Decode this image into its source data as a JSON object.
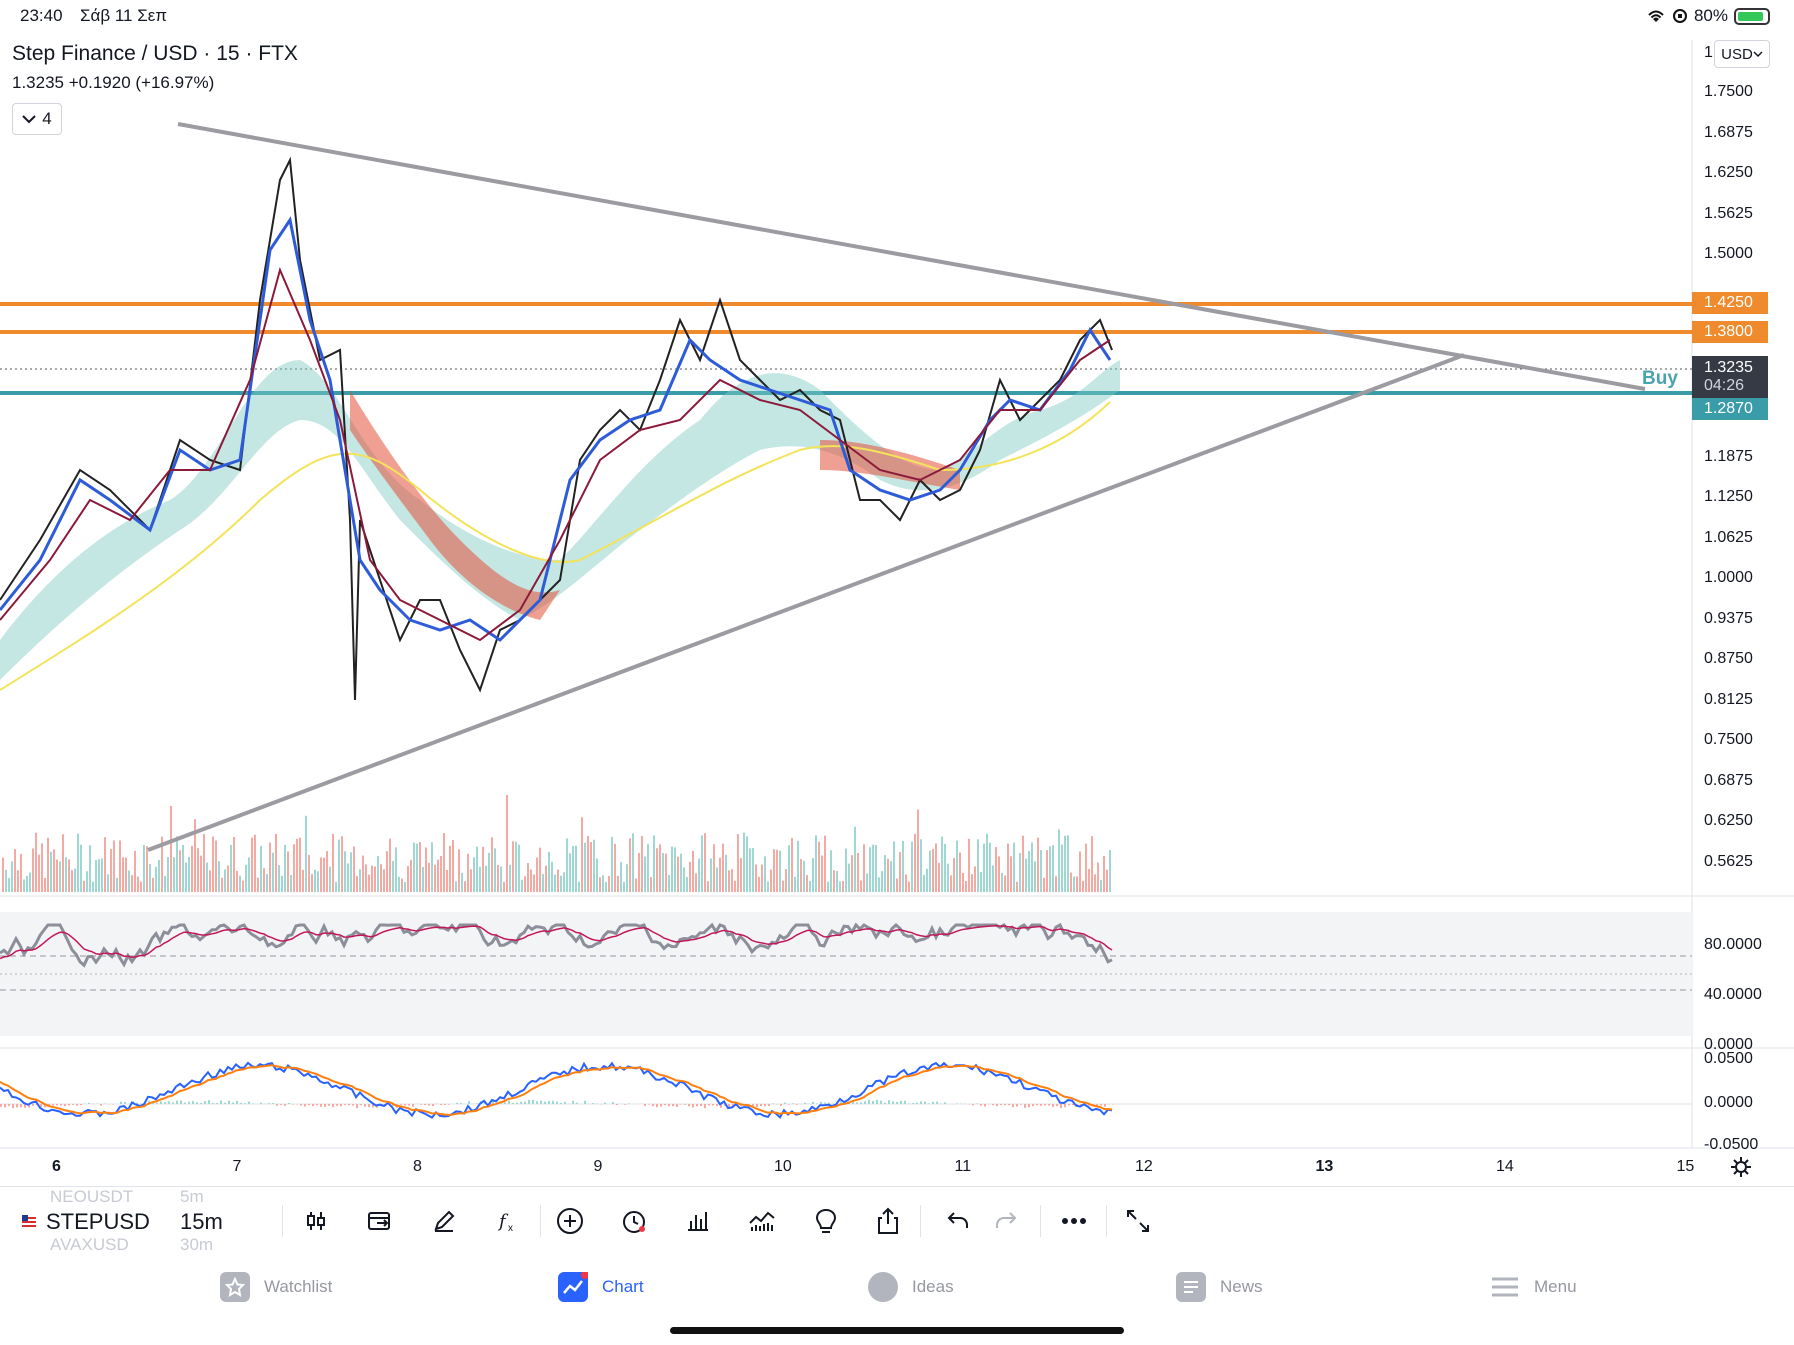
{
  "status": {
    "time": "23:40",
    "date": "Σάβ 11 Σεπ",
    "battery": "80%"
  },
  "legend": {
    "symbol_line": "Step Finance / USD · 15 · FTX",
    "price_line": "1.3235  +0.1920 (+16.97%)",
    "indicator_count": "4"
  },
  "currency_button": "USD",
  "scale_fragment": "1",
  "price_axis": [
    "1.7500",
    "1.6875",
    "1.6250",
    "1.5625",
    "1.5000",
    "1.1875",
    "1.1250",
    "1.0625",
    "1.0000",
    "0.9375",
    "0.8750",
    "0.8125",
    "0.7500",
    "0.6875",
    "0.6250",
    "0.5625"
  ],
  "price_tags": {
    "resistance_1": {
      "label": "1.4250",
      "color": "#ef8b2c"
    },
    "resistance_2": {
      "label": "1.3800",
      "color": "#ef8b2c"
    },
    "last_price": {
      "label": "1.3235",
      "countdown": "04:26",
      "color": "#363a45"
    },
    "support": {
      "label": "1.2870",
      "color": "#3a9ca8"
    }
  },
  "buy_label": "Buy",
  "rsi_axis": [
    "80.0000",
    "40.0000",
    "0.0000"
  ],
  "macd_axis": [
    "0.0500",
    "0.0000",
    "-0.0500"
  ],
  "time_axis": [
    "6",
    "7",
    "8",
    "9",
    "10",
    "11",
    "12",
    "13",
    "14",
    "15"
  ],
  "toolbar": {
    "symbol": "STEPUSD",
    "symbol_above": "NEOUSDT",
    "symbol_below": "AVAXUSD",
    "interval": "15m",
    "interval_above": "5m",
    "interval_below": "30m",
    "tools": [
      "candles-icon",
      "compare-icon",
      "draw-icon",
      "indicators-icon",
      "add-icon",
      "alert-icon",
      "bar-chart-icon",
      "financials-icon",
      "idea-icon",
      "share-icon",
      "undo-icon",
      "redo-icon",
      "more-icon",
      "fullscreen-icon"
    ]
  },
  "tabs": [
    {
      "label": "Watchlist",
      "icon": "watchlist-icon"
    },
    {
      "label": "Chart",
      "icon": "chart-icon",
      "active": true
    },
    {
      "label": "Ideas",
      "icon": "ideas-icon"
    },
    {
      "label": "News",
      "icon": "news-icon"
    },
    {
      "label": "Menu",
      "icon": "menu-icon"
    }
  ],
  "colors": {
    "orange": "#ef8b2c",
    "teal": "#3a9ca8",
    "trendline": "#9b9ba1",
    "active": "#2962ff"
  },
  "chart_data": {
    "type": "line",
    "title": "Step Finance / USD · 15 · FTX",
    "x": [
      "6",
      "7",
      "8",
      "9",
      "10",
      "11",
      "12"
    ],
    "series": [
      {
        "values": [
          0.88,
          1.18,
          0.92,
          1.2,
          1.22,
          1.2,
          1.32
        ]
      }
    ],
    "ylim": [
      0.53,
      1.78
    ],
    "grid": false
  }
}
